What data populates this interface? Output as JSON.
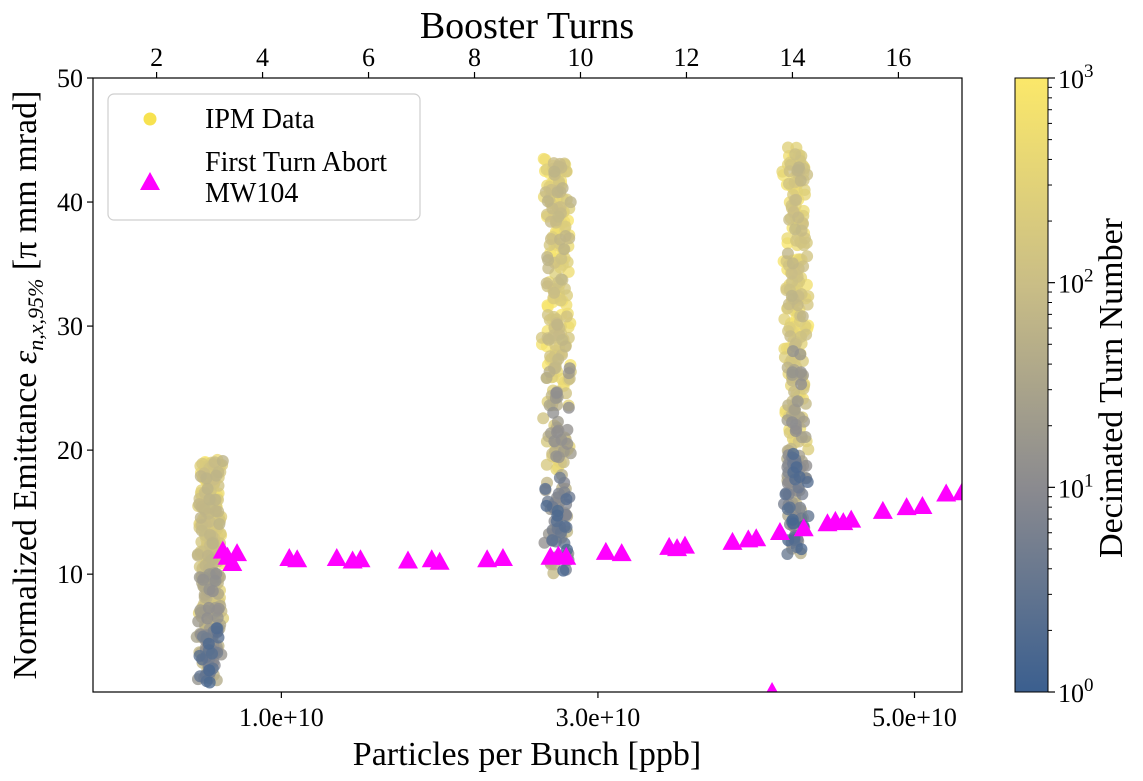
{
  "chart_data": {
    "type": "scatter",
    "title": "",
    "xlabel": "Particles per Bunch [ppb]",
    "ylabel_prefix": "Normalized Emittance ",
    "ylabel_symbol": "ε",
    "ylabel_subscript": "n,x,95%",
    "ylabel_suffix": " [π mm mrad]",
    "top_xlabel": "Booster Turns",
    "colorbar_label": "Decimated Turn Number",
    "xlim": [
      -1900000000.0,
      53000000000.0
    ],
    "ylim": [
      0.5,
      50
    ],
    "grid": false,
    "legend_position": "top-left",
    "x_ticks": [
      {
        "value": 10000000000.0,
        "label": "1.0e+10"
      },
      {
        "value": 30000000000.0,
        "label": "3.0e+10"
      },
      {
        "value": 50000000000.0,
        "label": "5.0e+10"
      }
    ],
    "y_ticks": [
      10,
      20,
      30,
      40,
      50
    ],
    "top_ticks": [
      {
        "value": 2,
        "label": "2"
      },
      {
        "value": 4,
        "label": "4"
      },
      {
        "value": 6,
        "label": "6"
      },
      {
        "value": 8,
        "label": "8"
      },
      {
        "value": 10,
        "label": "10"
      },
      {
        "value": 12,
        "label": "12"
      },
      {
        "value": 14,
        "label": "14"
      },
      {
        "value": 16,
        "label": "16"
      }
    ],
    "top_axis_xlim": [
      0.8,
      17.2
    ],
    "colorbar": {
      "scale": "log",
      "range": [
        1,
        1000
      ],
      "ticks": [
        {
          "value": 1,
          "label": "10",
          "exp": "0"
        },
        {
          "value": 10,
          "label": "10",
          "exp": "1"
        },
        {
          "value": 100,
          "label": "10",
          "exp": "2"
        },
        {
          "value": 1000,
          "label": "10",
          "exp": "3"
        }
      ],
      "colors": [
        "#3b5f8f",
        "#8a8a8f",
        "#c9bd86",
        "#fbe86a"
      ]
    },
    "series": [
      {
        "name": "IPM Data",
        "marker": "circle",
        "color": "#f7e250",
        "clusters": [
          {
            "x_center": 5500000000.0,
            "x_spread": 900000000.0,
            "y_min": 1.2,
            "y_max": 19.3,
            "n": 380
          },
          {
            "x_center": 27400000000.0,
            "x_spread": 1000000000.0,
            "y_min": 9.9,
            "y_max": 43.8,
            "n": 320
          },
          {
            "x_center": 42500000000.0,
            "x_spread": 900000000.0,
            "y_min": 11.5,
            "y_max": 44.5,
            "n": 320
          }
        ]
      },
      {
        "name": "First Turn Abort\nMW104",
        "marker": "triangle",
        "color": "#ff00ff",
        "points": [
          [
            6300000000.0,
            11.9
          ],
          [
            6600000000.0,
            11.4
          ],
          [
            6900000000.0,
            10.9
          ],
          [
            7200000000.0,
            11.7
          ],
          [
            10500000000.0,
            11.3
          ],
          [
            11000000000.0,
            11.2
          ],
          [
            13500000000.0,
            11.3
          ],
          [
            14500000000.0,
            11.1
          ],
          [
            15000000000.0,
            11.2
          ],
          [
            18000000000.0,
            11.1
          ],
          [
            19500000000.0,
            11.2
          ],
          [
            20000000000.0,
            11.0
          ],
          [
            23000000000.0,
            11.2
          ],
          [
            24000000000.0,
            11.3
          ],
          [
            27000000000.0,
            11.4
          ],
          [
            27500000000.0,
            11.5
          ],
          [
            28000000000.0,
            11.4
          ],
          [
            30500000000.0,
            11.8
          ],
          [
            31500000000.0,
            11.7
          ],
          [
            34500000000.0,
            12.2
          ],
          [
            35000000000.0,
            12.1
          ],
          [
            35500000000.0,
            12.3
          ],
          [
            38500000000.0,
            12.6
          ],
          [
            39500000000.0,
            12.8
          ],
          [
            40000000000.0,
            12.9
          ],
          [
            41500000000.0,
            13.4
          ],
          [
            43000000000.0,
            13.7
          ],
          [
            44500000000.0,
            14.1
          ],
          [
            45000000000.0,
            14.3
          ],
          [
            45500000000.0,
            14.2
          ],
          [
            46000000000.0,
            14.4
          ],
          [
            48000000000.0,
            15.1
          ],
          [
            49500000000.0,
            15.4
          ],
          [
            50500000000.0,
            15.5
          ],
          [
            52000000000.0,
            16.5
          ],
          [
            53000000000.0,
            16.6
          ],
          [
            41000000000.0,
            0.5
          ]
        ]
      }
    ]
  }
}
